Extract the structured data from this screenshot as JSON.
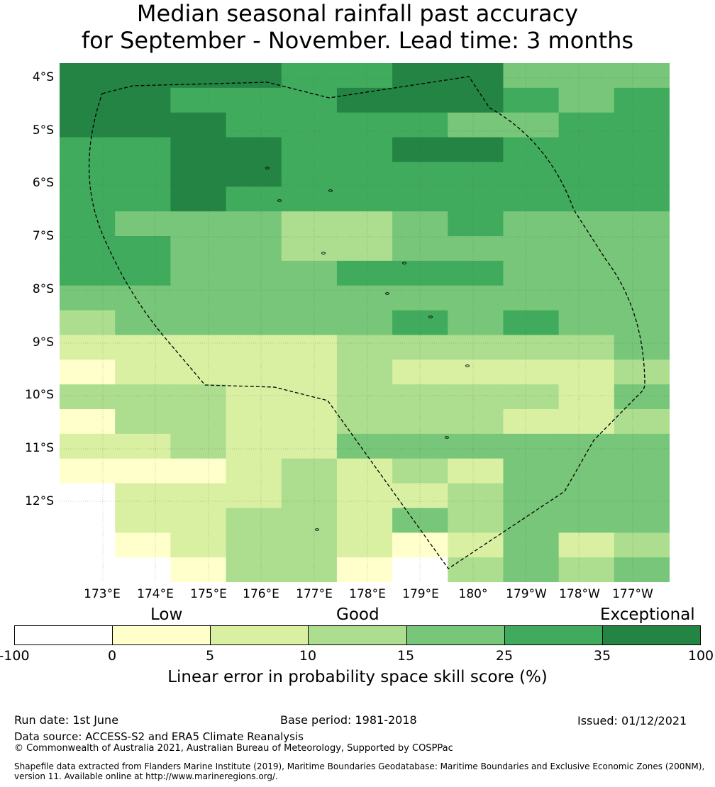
{
  "title": {
    "line1": "Median seasonal rainfall past accuracy",
    "line2": "for September - November. Lead time: 3 months"
  },
  "map": {
    "lat_labels": [
      "4°S",
      "5°S",
      "6°S",
      "7°S",
      "8°S",
      "9°S",
      "10°S",
      "11°S",
      "12°S"
    ],
    "lon_labels": [
      "173°E",
      "174°E",
      "175°E",
      "176°E",
      "177°E",
      "178°E",
      "179°E",
      "180°",
      "179°W",
      "178°W",
      "177°W"
    ],
    "boundary_style": "dashed black EEZ outline",
    "background": "#ffffff"
  },
  "legend": {
    "categories": [
      "Low",
      "Good",
      "Exceptional"
    ],
    "ticks": [
      "-100",
      "0",
      "5",
      "10",
      "15",
      "25",
      "35",
      "100"
    ],
    "colors": [
      "#ffffff",
      "#ffffcc",
      "#d9f0a3",
      "#addd8e",
      "#78c679",
      "#41ab5d",
      "#238443"
    ],
    "title": "Linear error in probability space skill score (%)"
  },
  "grid": {
    "rows": [
      "66665566444",
      "66555666545",
      "66655554455",
      "55665566555",
      "55665555555",
      "55655555555",
      "54443345444",
      "55443344444",
      "55444555444",
      "44444444444",
      "34444454544",
      "22222333334",
      "12222322223",
      "33322333324",
      "13322333223",
      "22322444444",
      "11123232444",
      "02223223444",
      "02233243444",
      "01233212423",
      "00133103434"
    ],
    "levels": [
      0,
      1,
      2,
      3,
      4,
      5,
      6
    ]
  },
  "footer": {
    "run_date": "Run date: 1st June",
    "base_period": "Base period: 1981-2018",
    "issued": "Issued: 01/12/2021",
    "data_source": "Data source: ACCESS-S2 and ERA5 Climate Reanalysis",
    "copyright": "© Commonwealth of Australia 2021, Australian Bureau of Meteorology, Supported by COSPPac",
    "shapefile_line1": "Shapefile data extracted from Flanders Marine Institute (2019), Maritime Boundaries Geodatabase: Maritime Boundaries and Exclusive Economic Zones (200NM),",
    "shapefile_line2": "version 11. Available online at http://www.marineregions.org/."
  }
}
